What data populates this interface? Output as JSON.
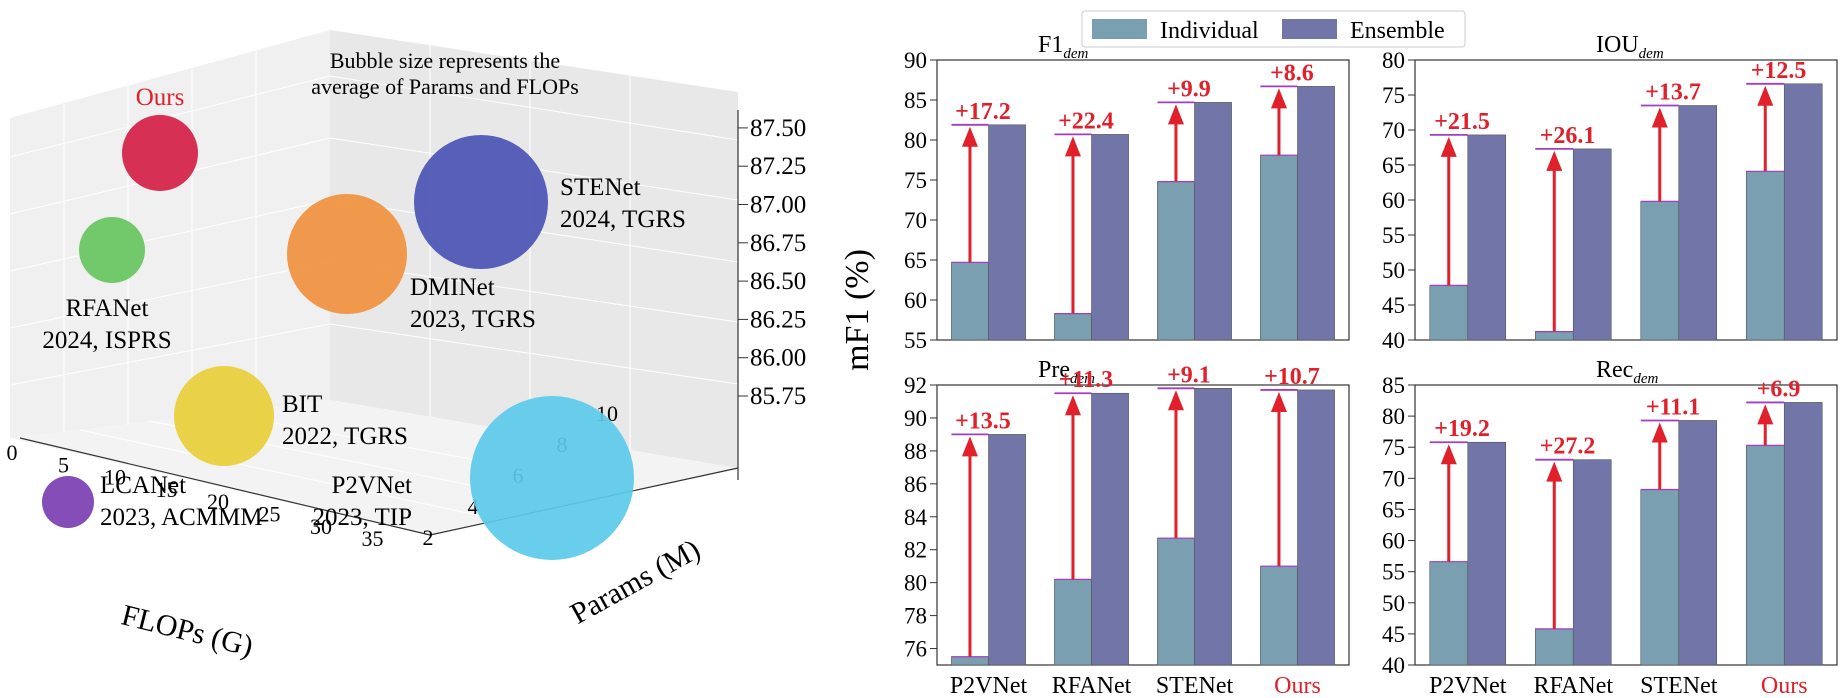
{
  "colors": {
    "individual": "#7a9fb0",
    "ensemble": "#7175a8",
    "gain_arrow": "#e0202a",
    "gain_text": "#e0202a",
    "ours_label": "#e0202a",
    "top_line": "#a43ec0"
  },
  "chart_data": [
    {
      "type": "scatter",
      "subtype": "3d-bubble",
      "annotation": "Bubble size represents the average of Params and FLOPs",
      "xlabel": "FLOPs (G)",
      "ylabel": "Params (M)",
      "zlabel": "",
      "x_ticks": [
        "0",
        "5",
        "10",
        "15",
        "20",
        "25",
        "30",
        "35"
      ],
      "y_ticks": [
        "2",
        "4",
        "6",
        "8",
        "10"
      ],
      "z_ticks": [
        "85.75",
        "86.00",
        "86.25",
        "86.50",
        "86.75",
        "87.00",
        "87.25",
        "87.50"
      ],
      "points": [
        {
          "name": "Ours",
          "label_line1": "Ours",
          "label_line2": "",
          "color": "#d41f47",
          "highlight": true
        },
        {
          "name": "RFANet",
          "label_line1": "RFANet",
          "label_line2": "2024, ISPRS",
          "color": "#67c560"
        },
        {
          "name": "BIT",
          "label_line1": "BIT",
          "label_line2": "2022, TGRS",
          "color": "#e8cf3a"
        },
        {
          "name": "LCANet",
          "label_line1": "LCANet",
          "label_line2": "2023, ACMMM",
          "color": "#7b3eb2"
        },
        {
          "name": "DMINet",
          "label_line1": "DMINet",
          "label_line2": "2023, TGRS",
          "color": "#f0913e"
        },
        {
          "name": "STENet",
          "label_line1": "STENet",
          "label_line2": "2024, TGRS",
          "color": "#4a53b3"
        },
        {
          "name": "P2VNet",
          "label_line1": "P2VNet",
          "label_line2": "2023, TIP",
          "color": "#5cc9ea"
        }
      ]
    },
    {
      "type": "bar",
      "ylabel": "mF1 (%)",
      "categories": [
        "P2VNet",
        "RFANet",
        "STENet",
        "Ours"
      ],
      "legend": [
        "Individual",
        "Ensemble"
      ],
      "legend_position": "top-center",
      "panels": [
        {
          "title": "F1",
          "title_sub": "dem",
          "ylim": [
            55,
            90
          ],
          "yticks": [
            "55",
            "60",
            "65",
            "70",
            "75",
            "80",
            "85",
            "90"
          ],
          "series": [
            {
              "name": "Individual",
              "values": [
                64.7,
                58.3,
                74.8,
                78.1
              ]
            },
            {
              "name": "Ensemble",
              "values": [
                81.9,
                80.7,
                84.7,
                86.7
              ]
            }
          ],
          "gains": [
            "+17.2",
            "+22.4",
            "+9.9",
            "+8.6"
          ]
        },
        {
          "title": "IOU",
          "title_sub": "dem",
          "ylim": [
            40,
            80
          ],
          "yticks": [
            "40",
            "45",
            "50",
            "55",
            "60",
            "65",
            "70",
            "75",
            "80"
          ],
          "series": [
            {
              "name": "Individual",
              "values": [
                47.8,
                41.2,
                59.8,
                64.1
              ]
            },
            {
              "name": "Ensemble",
              "values": [
                69.3,
                67.3,
                73.5,
                76.6
              ]
            }
          ],
          "gains": [
            "+21.5",
            "+26.1",
            "+13.7",
            "+12.5"
          ]
        },
        {
          "title": "Pre",
          "title_sub": "dem",
          "ylim": [
            75,
            92
          ],
          "yticks": [
            "76",
            "78",
            "80",
            "82",
            "84",
            "86",
            "88",
            "90",
            "92"
          ],
          "series": [
            {
              "name": "Individual",
              "values": [
                75.5,
                80.2,
                82.7,
                81.0
              ]
            },
            {
              "name": "Ensemble",
              "values": [
                89.0,
                91.5,
                91.8,
                91.7
              ]
            }
          ],
          "gains": [
            "+13.5",
            "+11.3",
            "+9.1",
            "+10.7"
          ]
        },
        {
          "title": "Rec",
          "title_sub": "dem",
          "ylim": [
            40,
            85
          ],
          "yticks": [
            "40",
            "45",
            "50",
            "55",
            "60",
            "65",
            "70",
            "75",
            "80",
            "85"
          ],
          "series": [
            {
              "name": "Individual",
              "values": [
                56.6,
                45.8,
                68.2,
                75.3
              ]
            },
            {
              "name": "Ensemble",
              "values": [
                75.8,
                73.0,
                79.3,
                82.2
              ]
            }
          ],
          "gains": [
            "+19.2",
            "+27.2",
            "+11.1",
            "+6.9"
          ]
        }
      ]
    }
  ]
}
